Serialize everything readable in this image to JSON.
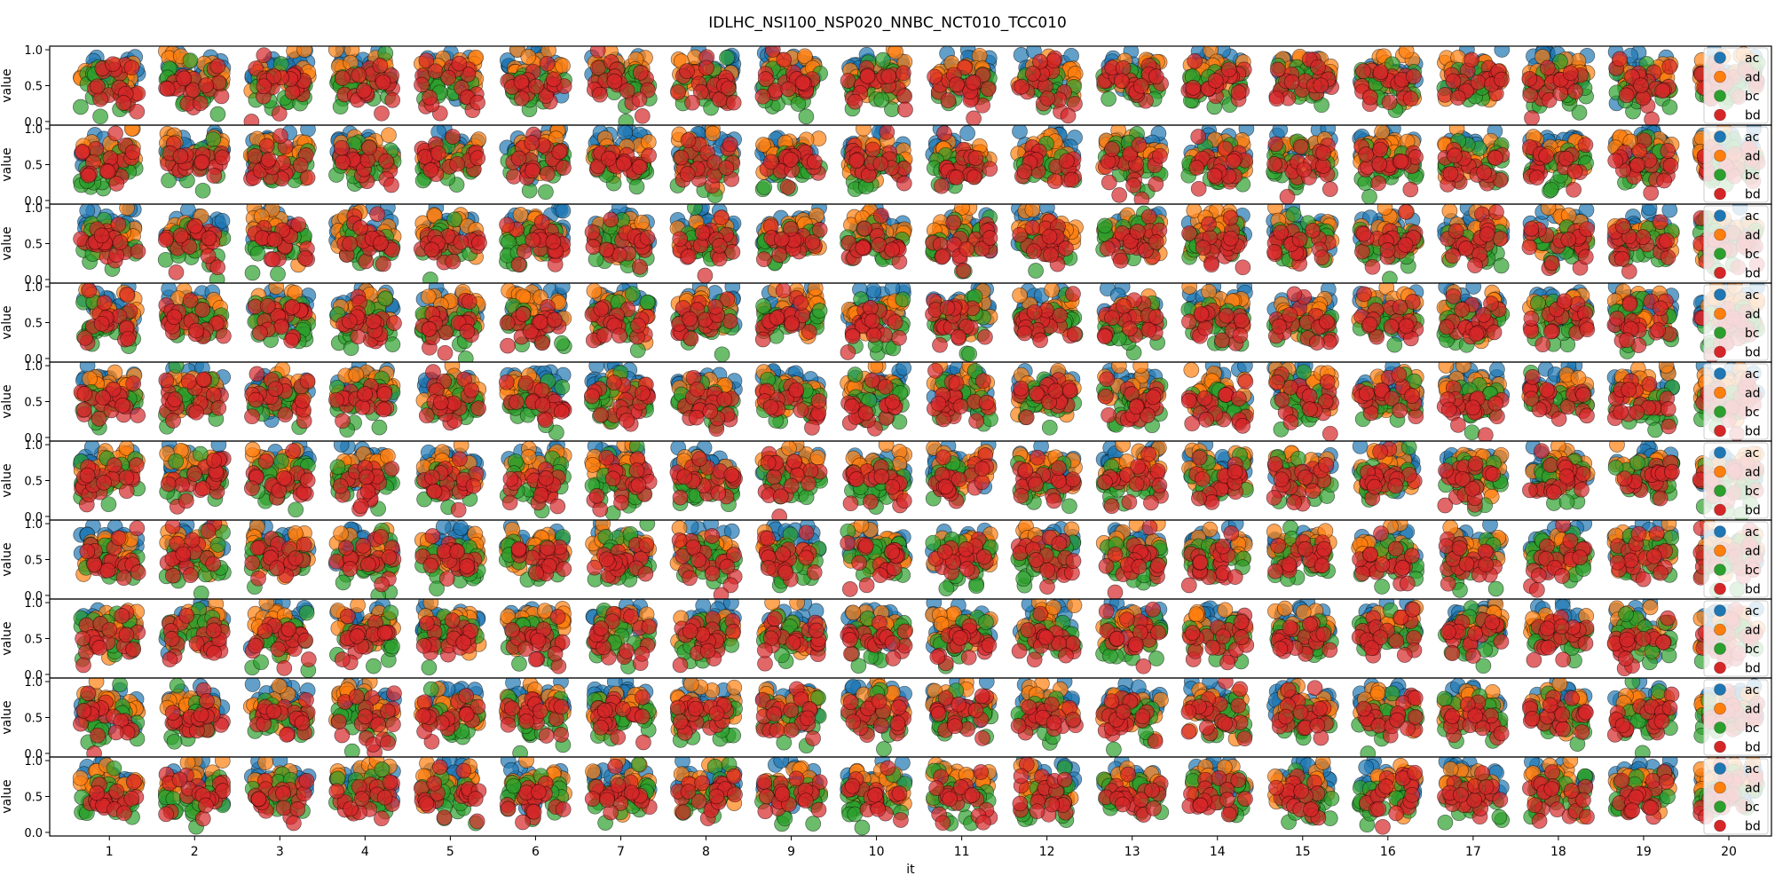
{
  "chart_data": {
    "type": "scatter",
    "title": "IDLHC_NSI100_NSP020_NNBC_NCT010_TCC010",
    "xlabel": "it",
    "ylabel": "value",
    "x_categories": [
      "1",
      "2",
      "3",
      "4",
      "5",
      "6",
      "7",
      "8",
      "9",
      "10",
      "11",
      "12",
      "13",
      "14",
      "15",
      "16",
      "17",
      "18",
      "19",
      "20"
    ],
    "ylim": [
      0.0,
      1.0
    ],
    "yticks": [
      "0.0",
      "0.5",
      "1.0"
    ],
    "panel_count": 10,
    "grid": false,
    "legend_placement": "right",
    "series": [
      {
        "name": "ac",
        "color": "#1f77b4",
        "center": 0.72,
        "spread": 0.14
      },
      {
        "name": "ad",
        "color": "#ff7f0e",
        "center": 0.66,
        "spread": 0.15
      },
      {
        "name": "bc",
        "color": "#2ca02c",
        "center": 0.48,
        "spread": 0.17
      },
      {
        "name": "bd",
        "color": "#d62728",
        "center": 0.5,
        "spread": 0.16
      }
    ],
    "points_per_series_per_iteration": 20
  }
}
